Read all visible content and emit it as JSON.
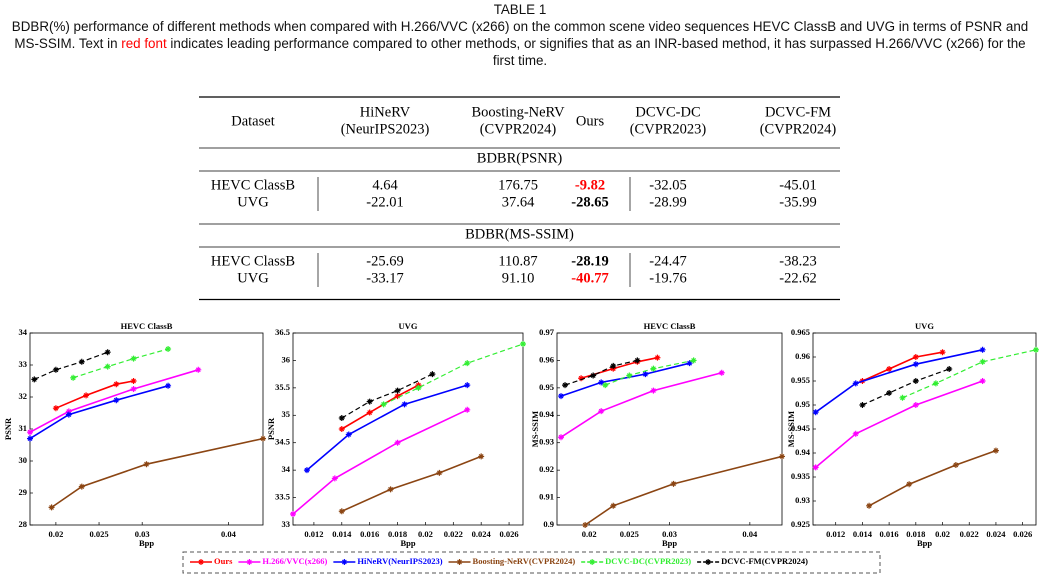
{
  "caption": {
    "label": "TABLE 1",
    "text": "BDBR(%) performance of different methods when compared with H.266/VVC (x266) on the common scene video sequences HEVC ClassB and UVG in terms of PSNR and MS-SSIM. Text in ",
    "highlight": "red font",
    "text_end": " indicates leading performance compared to other methods, or signifies that as an INR-based method, it has surpassed H.266/VVC (x266) for the first time."
  },
  "table": {
    "header": [
      [
        "Dataset"
      ],
      [
        "HiNeRV",
        "(NeurIPS2023)"
      ],
      [
        "Boosting-NeRV",
        "(CVPR2024)"
      ],
      [
        "Ours"
      ],
      [
        "DCVC-DC",
        "(CVPR2023)"
      ],
      [
        "DCVC-FM",
        "(CVPR2024)"
      ]
    ],
    "bold_column": 3,
    "sections": [
      {
        "title": "BDBR(PSNR)",
        "rows": [
          [
            "HEVC ClassB",
            "4.64",
            "176.75",
            "-9.82",
            "-32.05",
            "-45.01"
          ],
          [
            "UVG",
            "-22.01",
            "37.64",
            "-28.65",
            "-28.99",
            "-35.99"
          ]
        ],
        "red": [
          [
            0,
            3
          ]
        ]
      },
      {
        "title": "BDBR(MS-SSIM)",
        "rows": [
          [
            "HEVC ClassB",
            "-25.69",
            "110.87",
            "-28.19",
            "-24.47",
            "-38.23"
          ],
          [
            "UVG",
            "-33.17",
            "91.10",
            "-40.77",
            "-19.76",
            "-22.62"
          ]
        ],
        "red": [
          [
            1,
            3
          ]
        ]
      }
    ]
  },
  "legend": [
    {
      "name": "Ours",
      "color": "#ff0000",
      "dashed": false
    },
    {
      "name": "H.266/VVC(x266)",
      "color": "#ff00ff",
      "dashed": false
    },
    {
      "name": "HiNeRV(NeurIPS2023)",
      "color": "#0000ff",
      "dashed": false
    },
    {
      "name": "Boosting-NeRV(CVPR2024)",
      "color": "#8b4513",
      "dashed": false
    },
    {
      "name": "DCVC-DC(CVPR2023)",
      "color": "#33ee33",
      "dashed": true
    },
    {
      "name": "DCVC-FM(CVPR2024)",
      "color": "#000000",
      "dashed": true
    }
  ],
  "chart_data": [
    {
      "type": "line",
      "title": "HEVC ClassB",
      "x_label": "Bpp",
      "y_label": "PSNR",
      "xlim": [
        0.017,
        0.044
      ],
      "xticks": [
        0.02,
        0.025,
        0.03,
        0.04
      ],
      "ylim": [
        28,
        34
      ],
      "yticks": [
        28,
        29,
        30,
        31,
        32,
        33,
        34
      ],
      "series": [
        {
          "x": [
            0.02,
            0.0235,
            0.027,
            0.029
          ],
          "values": [
            31.65,
            32.05,
            32.4,
            32.5
          ]
        },
        {
          "x": [
            0.017,
            0.0215,
            0.029,
            0.0365
          ],
          "values": [
            30.9,
            31.55,
            32.25,
            32.85
          ]
        },
        {
          "x": [
            0.017,
            0.0215,
            0.027,
            0.033
          ],
          "values": [
            30.7,
            31.45,
            31.9,
            32.35
          ]
        },
        {
          "x": [
            0.0195,
            0.023,
            0.0305,
            0.044
          ],
          "values": [
            28.55,
            29.2,
            29.9,
            30.7
          ]
        },
        {
          "x": [
            0.022,
            0.026,
            0.029,
            0.033
          ],
          "values": [
            32.6,
            32.95,
            33.2,
            33.5
          ]
        },
        {
          "x": [
            0.0175,
            0.02,
            0.023,
            0.026
          ],
          "values": [
            32.55,
            32.85,
            33.1,
            33.4
          ]
        }
      ]
    },
    {
      "type": "line",
      "title": "UVG",
      "x_label": "Bpp",
      "y_label": "PSNR",
      "xlim": [
        0.0105,
        0.027
      ],
      "xticks": [
        0.012,
        0.014,
        0.016,
        0.018,
        0.02,
        0.022,
        0.024,
        0.026
      ],
      "ylim": [
        33,
        36.5
      ],
      "yticks": [
        33,
        33.5,
        34,
        34.5,
        35,
        35.5,
        36,
        36.5
      ],
      "series": [
        {
          "x": [
            0.014,
            0.016,
            0.018,
            0.0195
          ],
          "values": [
            34.75,
            35.05,
            35.35,
            35.55
          ]
        },
        {
          "x": [
            0.0105,
            0.0135,
            0.018,
            0.023
          ],
          "values": [
            33.2,
            33.85,
            34.5,
            35.1
          ]
        },
        {
          "x": [
            0.0115,
            0.0145,
            0.0185,
            0.023
          ],
          "values": [
            34.0,
            34.65,
            35.2,
            35.55
          ]
        },
        {
          "x": [
            0.014,
            0.0175,
            0.021,
            0.024
          ],
          "values": [
            33.25,
            33.65,
            33.95,
            34.25
          ]
        },
        {
          "x": [
            0.017,
            0.0195,
            0.023,
            0.027
          ],
          "values": [
            35.2,
            35.5,
            35.95,
            36.3
          ]
        },
        {
          "x": [
            0.014,
            0.016,
            0.018,
            0.0205
          ],
          "values": [
            34.95,
            35.25,
            35.45,
            35.75
          ]
        }
      ]
    },
    {
      "type": "line",
      "title": "HEVC ClassB",
      "x_label": "Bpp",
      "y_label": "MS-SSIM",
      "xlim": [
        0.016,
        0.044
      ],
      "xticks": [
        0.02,
        0.025,
        0.03,
        0.04
      ],
      "ylim": [
        0.9,
        0.97
      ],
      "yticks": [
        0.9,
        0.91,
        0.92,
        0.93,
        0.94,
        0.95,
        0.96,
        0.97
      ],
      "series": [
        {
          "x": [
            0.019,
            0.023,
            0.026,
            0.0285
          ],
          "values": [
            0.9535,
            0.957,
            0.9595,
            0.961
          ]
        },
        {
          "x": [
            0.0165,
            0.0215,
            0.028,
            0.0365
          ],
          "values": [
            0.932,
            0.9415,
            0.949,
            0.9555
          ]
        },
        {
          "x": [
            0.0165,
            0.0215,
            0.027,
            0.0325
          ],
          "values": [
            0.947,
            0.952,
            0.955,
            0.959
          ]
        },
        {
          "x": [
            0.0195,
            0.023,
            0.0305,
            0.044
          ],
          "values": [
            0.9,
            0.907,
            0.915,
            0.925
          ]
        },
        {
          "x": [
            0.022,
            0.025,
            0.028,
            0.033
          ],
          "values": [
            0.951,
            0.9545,
            0.957,
            0.96
          ]
        },
        {
          "x": [
            0.017,
            0.0205,
            0.023,
            0.026
          ],
          "values": [
            0.951,
            0.9545,
            0.958,
            0.96
          ]
        }
      ]
    },
    {
      "type": "line",
      "title": "UVG",
      "x_label": "Bpp",
      "y_label": "MS-SSIM",
      "xlim": [
        0.0103,
        0.027
      ],
      "xticks": [
        0.012,
        0.014,
        0.016,
        0.018,
        0.02,
        0.022,
        0.024,
        0.026
      ],
      "ylim": [
        0.925,
        0.965
      ],
      "yticks": [
        0.925,
        0.93,
        0.935,
        0.94,
        0.945,
        0.95,
        0.955,
        0.96,
        0.965
      ],
      "series": [
        {
          "x": [
            0.014,
            0.016,
            0.018,
            0.02
          ],
          "values": [
            0.955,
            0.9575,
            0.96,
            0.961
          ]
        },
        {
          "x": [
            0.0105,
            0.0135,
            0.018,
            0.023
          ],
          "values": [
            0.937,
            0.944,
            0.95,
            0.955
          ]
        },
        {
          "x": [
            0.0105,
            0.0135,
            0.018,
            0.023
          ],
          "values": [
            0.9485,
            0.9545,
            0.9585,
            0.9615
          ]
        },
        {
          "x": [
            0.0145,
            0.0175,
            0.021,
            0.024
          ],
          "values": [
            0.929,
            0.9335,
            0.9375,
            0.9405
          ]
        },
        {
          "x": [
            0.017,
            0.0195,
            0.023,
            0.027
          ],
          "values": [
            0.9515,
            0.9545,
            0.959,
            0.9615
          ]
        },
        {
          "x": [
            0.014,
            0.016,
            0.018,
            0.0205
          ],
          "values": [
            0.95,
            0.9525,
            0.955,
            0.9575
          ]
        }
      ]
    }
  ]
}
